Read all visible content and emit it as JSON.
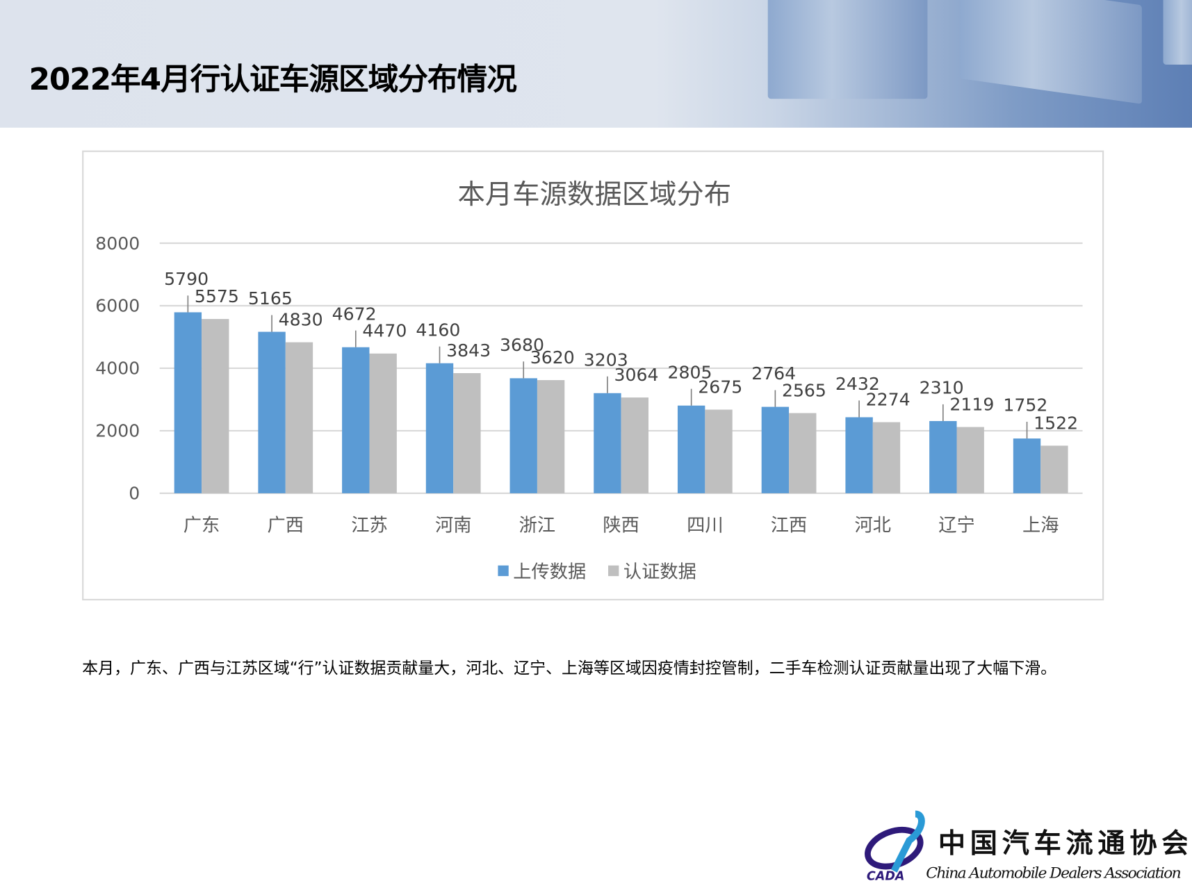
{
  "header": {
    "title": "2022年4月行认证车源区域分布情况"
  },
  "chart_data": {
    "type": "bar",
    "title": "本月车源数据区域分布",
    "categories": [
      "广东",
      "广西",
      "江苏",
      "河南",
      "浙江",
      "陕西",
      "四川",
      "江西",
      "河北",
      "辽宁",
      "上海"
    ],
    "series": [
      {
        "name": "上传数据",
        "color": "#5b9bd5",
        "values": [
          5790,
          5165,
          4672,
          4160,
          3680,
          3203,
          2805,
          2764,
          2432,
          2310,
          1752
        ]
      },
      {
        "name": "认证数据",
        "color": "#bfbfbf",
        "values": [
          5575,
          4830,
          4470,
          3843,
          3620,
          3064,
          2675,
          2565,
          2274,
          2119,
          1522
        ]
      }
    ],
    "ylim": [
      0,
      8000
    ],
    "yticks": [
      0,
      2000,
      4000,
      6000,
      8000
    ],
    "grid": true,
    "legend": "bottom",
    "xlabel": "",
    "ylabel": ""
  },
  "paragraph": "本月，广东、广西与江苏区域“行”认证数据贡献量大，河北、辽宁、上海等区域因疫情封控管制，二手车检测认证贡献量出现了大幅下滑。",
  "logo": {
    "cn": "中国汽车流通协会",
    "en": "China Automobile Dealers Association",
    "abbr": "CADA"
  }
}
